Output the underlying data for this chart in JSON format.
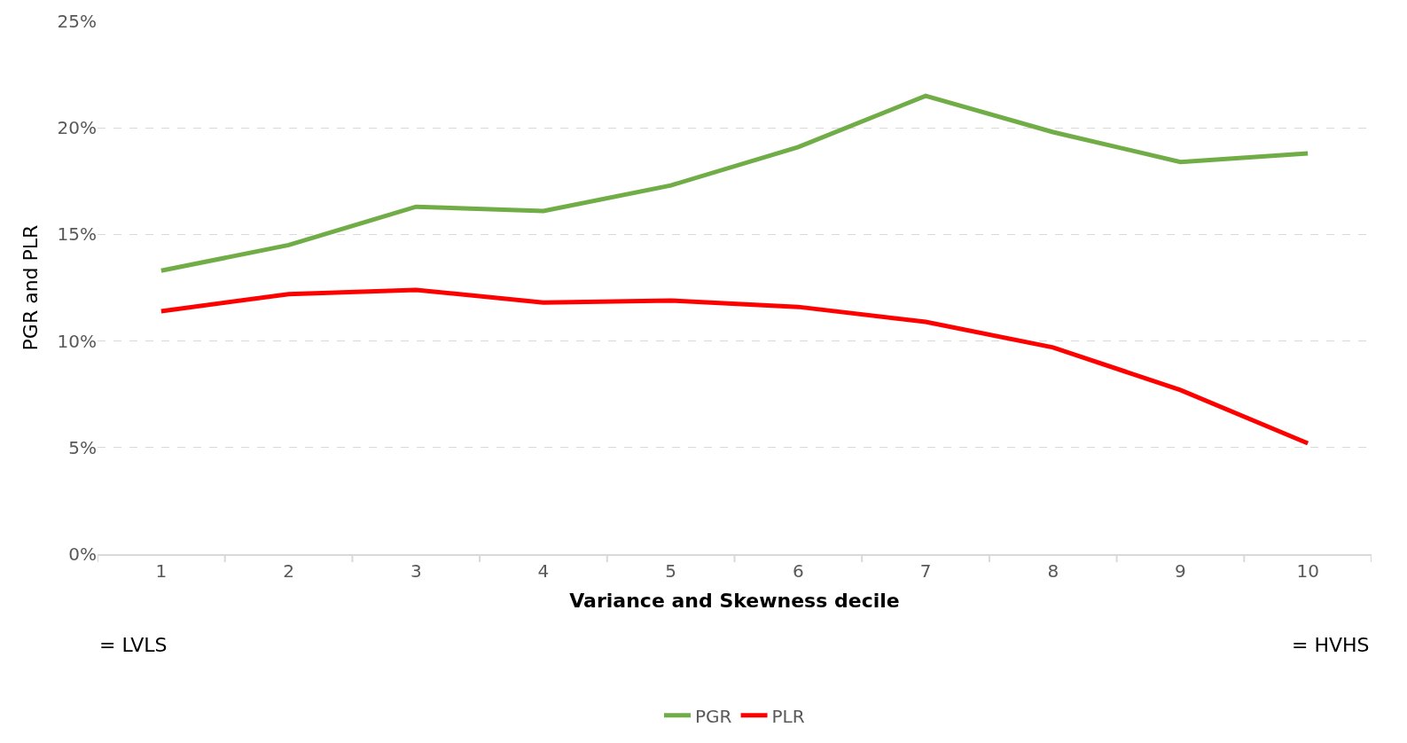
{
  "chart_data": {
    "type": "line",
    "xlabel": "Variance and Skewness decile",
    "ylabel": "PGR and PLR",
    "categories": [
      "1",
      "2",
      "3",
      "4",
      "5",
      "6",
      "7",
      "8",
      "9",
      "10"
    ],
    "series": [
      {
        "name": "PGR",
        "color": "#70ad47",
        "values": [
          13.3,
          14.5,
          16.3,
          16.1,
          17.3,
          19.1,
          21.5,
          19.8,
          18.4,
          18.8
        ]
      },
      {
        "name": "PLR",
        "color": "#ff0000",
        "values": [
          11.4,
          12.2,
          12.4,
          11.8,
          11.9,
          11.6,
          10.9,
          9.7,
          7.7,
          5.2
        ]
      }
    ],
    "ylim": [
      0,
      25
    ],
    "yticks": [
      {
        "value": 0,
        "label": "0%"
      },
      {
        "value": 5,
        "label": "5%"
      },
      {
        "value": 10,
        "label": "10%"
      },
      {
        "value": 15,
        "label": "15%"
      },
      {
        "value": 20,
        "label": "20%"
      },
      {
        "value": 25,
        "label": "25%"
      }
    ],
    "annotations": [
      "= LVLS",
      "= HVHS"
    ],
    "grid": "y",
    "legend": "bottom",
    "marker": "none",
    "line_style": "solid"
  }
}
